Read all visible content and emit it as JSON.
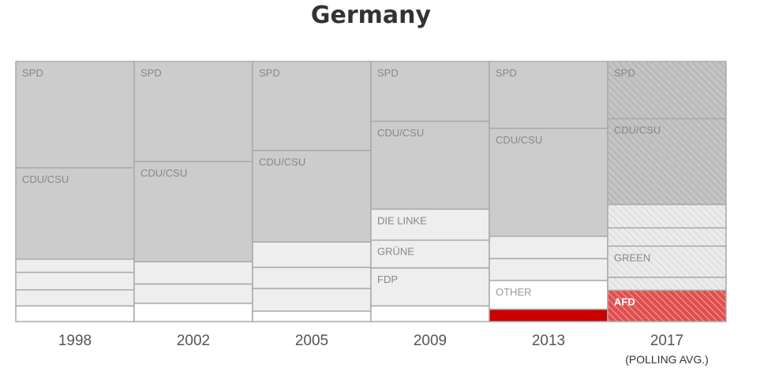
{
  "chart_data": {
    "type": "stacked-bar",
    "title": "Germany",
    "xlabel": "",
    "ylabel": "",
    "ylim": [
      0,
      100
    ],
    "colors": {
      "major": "#cccccc",
      "minor": "#eeeeee",
      "other": "#ffffff",
      "afd": "#cc0000",
      "border": "#aaaaaa",
      "hatch_major": "#c4c4c4",
      "hatch_major_line": "#aaaaaa",
      "hatch_minor": "#ebebeb",
      "hatch_minor_line": "#d6d6d6",
      "hatch_afd": "#e04f4f",
      "hatch_afd_line": "#f5a5a5"
    },
    "columns": [
      {
        "year": "1998",
        "sublabel": "",
        "projected": false,
        "segments": [
          {
            "label": "SPD",
            "value": 40.9,
            "kind": "major"
          },
          {
            "label": "CDU/CSU",
            "value": 35.1,
            "kind": "major"
          },
          {
            "label": "",
            "value": 5.1,
            "kind": "minor"
          },
          {
            "label": "",
            "value": 6.7,
            "kind": "minor"
          },
          {
            "label": "",
            "value": 6.2,
            "kind": "minor"
          },
          {
            "label": "",
            "value": 6.0,
            "kind": "other"
          }
        ]
      },
      {
        "year": "2002",
        "sublabel": "",
        "projected": false,
        "segments": [
          {
            "label": "SPD",
            "value": 38.5,
            "kind": "major"
          },
          {
            "label": "CDU/CSU",
            "value": 38.5,
            "kind": "major"
          },
          {
            "label": "",
            "value": 8.6,
            "kind": "minor"
          },
          {
            "label": "",
            "value": 7.4,
            "kind": "minor"
          },
          {
            "label": "",
            "value": 7.0,
            "kind": "other"
          }
        ]
      },
      {
        "year": "2005",
        "sublabel": "",
        "projected": false,
        "segments": [
          {
            "label": "SPD",
            "value": 34.2,
            "kind": "major"
          },
          {
            "label": "CDU/CSU",
            "value": 35.2,
            "kind": "major"
          },
          {
            "label": "",
            "value": 9.8,
            "kind": "minor"
          },
          {
            "label": "",
            "value": 8.1,
            "kind": "minor"
          },
          {
            "label": "",
            "value": 8.7,
            "kind": "minor"
          },
          {
            "label": "",
            "value": 4.0,
            "kind": "other"
          }
        ]
      },
      {
        "year": "2009",
        "sublabel": "",
        "projected": false,
        "segments": [
          {
            "label": "SPD",
            "value": 23.0,
            "kind": "major"
          },
          {
            "label": "CDU/CSU",
            "value": 33.8,
            "kind": "major"
          },
          {
            "label": "DIE LINKE",
            "value": 11.9,
            "kind": "minor"
          },
          {
            "label": "GRÜNE",
            "value": 10.7,
            "kind": "minor"
          },
          {
            "label": "FDP",
            "value": 14.6,
            "kind": "minor"
          },
          {
            "label": "",
            "value": 6.0,
            "kind": "other"
          }
        ]
      },
      {
        "year": "2013",
        "sublabel": "",
        "projected": false,
        "segments": [
          {
            "label": "SPD",
            "value": 25.7,
            "kind": "major"
          },
          {
            "label": "CDU/CSU",
            "value": 41.5,
            "kind": "major"
          },
          {
            "label": "",
            "value": 8.6,
            "kind": "minor"
          },
          {
            "label": "",
            "value": 8.4,
            "kind": "minor"
          },
          {
            "label": "OTHER",
            "value": 11.1,
            "kind": "other"
          },
          {
            "label": "",
            "value": 4.7,
            "kind": "afd"
          }
        ]
      },
      {
        "year": "2017",
        "sublabel": "(POLLING AVG.)",
        "projected": true,
        "segments": [
          {
            "label": "SPD",
            "value": 22.0,
            "kind": "major"
          },
          {
            "label": "CDU/CSU",
            "value": 33.0,
            "kind": "major"
          },
          {
            "label": "",
            "value": 9.0,
            "kind": "minor"
          },
          {
            "label": "",
            "value": 7.0,
            "kind": "minor"
          },
          {
            "label": "GREEN",
            "value": 12.0,
            "kind": "minor"
          },
          {
            "label": "",
            "value": 5.0,
            "kind": "minor"
          },
          {
            "label": "AFD",
            "value": 12.0,
            "kind": "afd"
          }
        ]
      }
    ]
  }
}
